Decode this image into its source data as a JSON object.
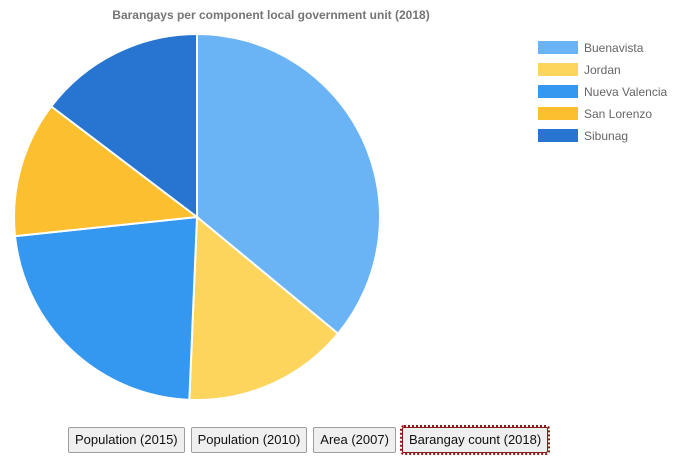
{
  "chart_data": {
    "type": "pie",
    "title": "Barangays per component local government unit (2018)",
    "categories": [
      "Buenavista",
      "Jordan",
      "Nueva Valencia",
      "San Lorenzo",
      "Sibunag"
    ],
    "values": [
      27,
      11,
      17,
      9,
      11
    ],
    "colors": [
      "#6ab4f5",
      "#fdd45c",
      "#3598f0",
      "#fcbf2f",
      "#2775d1"
    ],
    "legend_position": "top-right",
    "start_angle_deg": 0,
    "direction": "clockwise"
  },
  "tabs": [
    {
      "label": "Population (2015)",
      "active": false
    },
    {
      "label": "Population (2010)",
      "active": false
    },
    {
      "label": "Area (2007)",
      "active": false
    },
    {
      "label": "Barangay count (2018)",
      "active": true
    }
  ]
}
